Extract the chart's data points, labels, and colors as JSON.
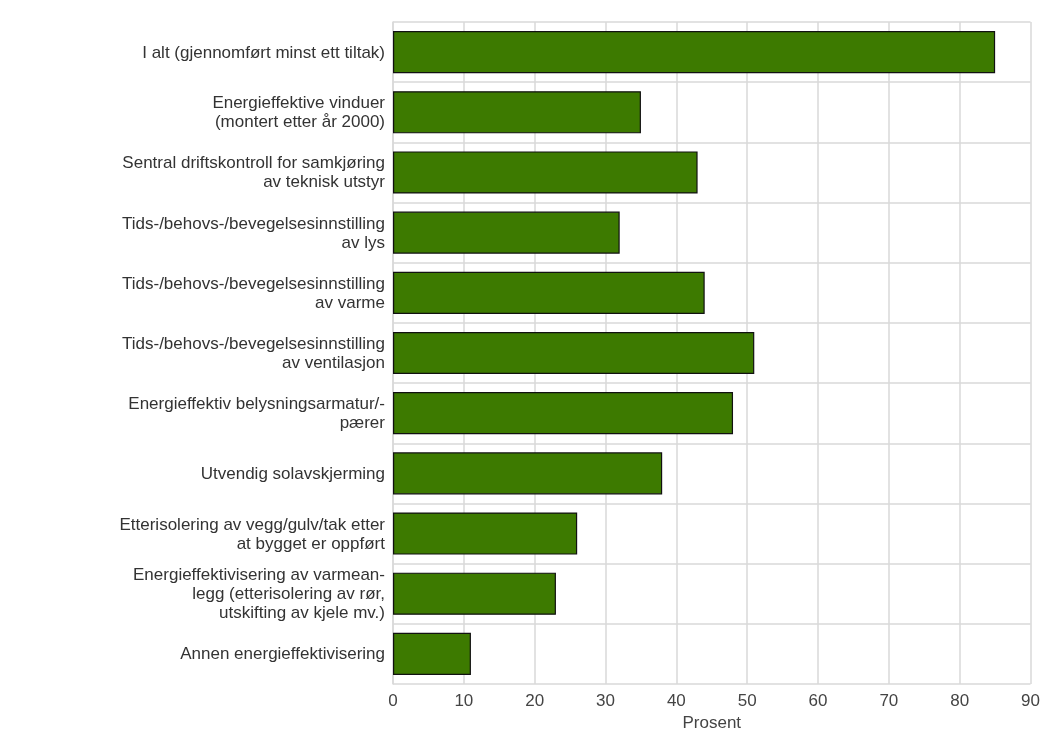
{
  "chart_data": {
    "type": "bar",
    "orientation": "horizontal",
    "xlabel": "Prosent",
    "categories": [
      "I alt (gjennomført minst ett tiltak)",
      "Energieffektive vinduer\n(montert etter år 2000)",
      "Sentral driftskontroll for samkjøring\nav teknisk utstyr",
      "Tids-/behovs-/bevegelsesinnstilling\nav lys",
      "Tids-/behovs-/bevegelsesinnstilling\nav varme",
      "Tids-/behovs-/bevegelsesinnstilling\nav ventilasjon",
      "Energieffektiv belysningsarmatur/-\npærer",
      "Utvendig solavskjerming",
      "Etterisolering av vegg/gulv/tak etter\nat bygget er oppført",
      "Energieffektivisering av varmean-\nlegg (etterisolering av rør,\nutskifting av kjele mv.)",
      "Annen energieffektivisering"
    ],
    "values": [
      85,
      35,
      43,
      32,
      44,
      51,
      48,
      38,
      26,
      23,
      11
    ],
    "color": "#3d7a00",
    "xlim": [
      0,
      90
    ],
    "xticks": [
      0,
      10,
      20,
      30,
      40,
      50,
      60,
      70,
      80,
      90
    ],
    "grid": true
  }
}
